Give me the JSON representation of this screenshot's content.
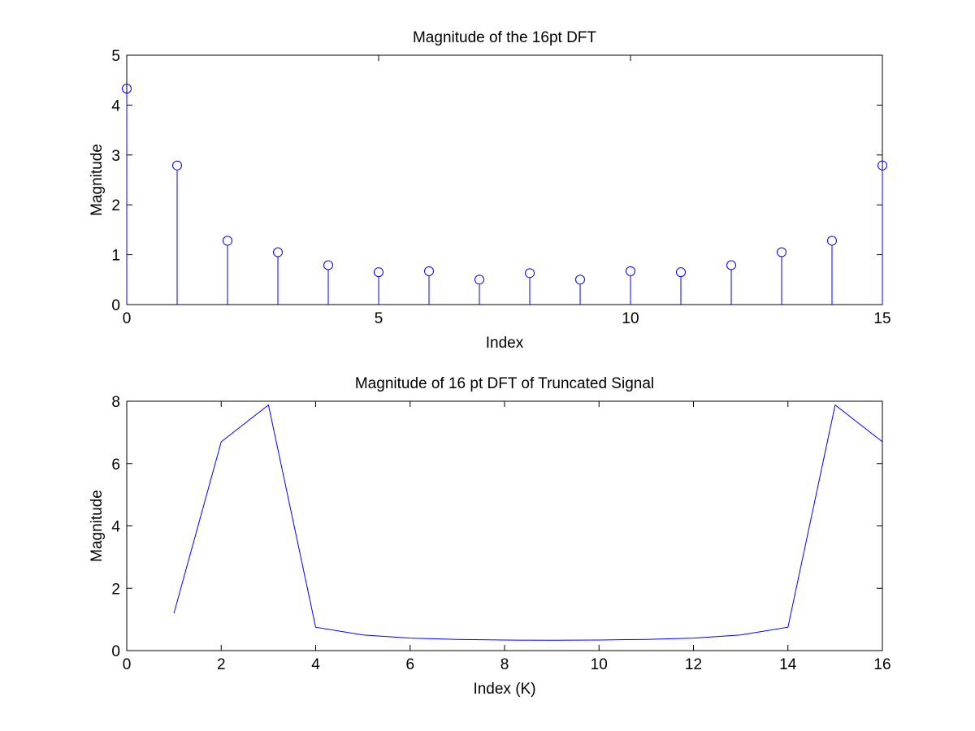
{
  "chart_data": [
    {
      "type": "stem",
      "title": "Magnitude of the 16pt DFT",
      "xlabel": "Index",
      "ylabel": "Magnitude",
      "xlim": [
        0,
        15
      ],
      "ylim": [
        0,
        5
      ],
      "xticks": [
        0,
        5,
        10,
        15
      ],
      "yticks": [
        0,
        1,
        2,
        3,
        4,
        5
      ],
      "grid": false,
      "series": [
        {
          "color": "#0000ff",
          "marker": "circle",
          "x": [
            0,
            1,
            2,
            3,
            4,
            5,
            6,
            7,
            8,
            9,
            10,
            11,
            12,
            13,
            14,
            15
          ],
          "y": [
            4.33,
            2.79,
            1.28,
            1.05,
            0.79,
            0.65,
            0.67,
            0.5,
            0.63,
            0.5,
            0.67,
            0.65,
            0.79,
            1.05,
            1.28,
            2.79
          ]
        }
      ]
    },
    {
      "type": "line",
      "title": "Magnitude of 16 pt DFT of Truncated Signal",
      "xlabel": "Index (K)",
      "ylabel": "Magnitude",
      "xlim": [
        0,
        16
      ],
      "ylim": [
        0,
        8
      ],
      "xticks": [
        0,
        2,
        4,
        6,
        8,
        10,
        12,
        14,
        16
      ],
      "yticks": [
        0,
        2,
        4,
        6,
        8
      ],
      "grid": false,
      "series": [
        {
          "color": "#0000ff",
          "x": [
            1,
            2,
            3,
            4,
            5,
            6,
            7,
            8,
            9,
            10,
            11,
            12,
            13,
            14,
            15,
            16
          ],
          "y": [
            1.2,
            6.7,
            7.88,
            0.75,
            0.5,
            0.4,
            0.36,
            0.34,
            0.33,
            0.34,
            0.36,
            0.4,
            0.5,
            0.75,
            7.88,
            6.7
          ]
        }
      ]
    }
  ]
}
